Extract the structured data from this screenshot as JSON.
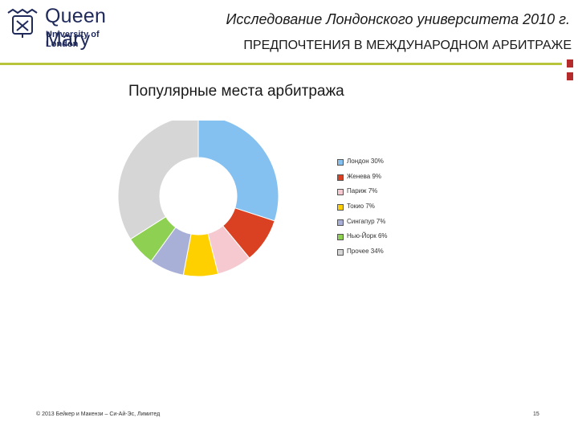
{
  "logo": {
    "name": "Queen Mary",
    "sub": "University of London"
  },
  "header": {
    "title": "Исследование Лондонского университета 2010 г.",
    "subtitle": "ПРЕДПОЧТЕНИЯ В МЕЖДУНАРОДНОМ АРБИТРАЖЕ"
  },
  "colors": {
    "accent_rule": "#b8c43a",
    "corner": "#b52a2a"
  },
  "chart_data": {
    "type": "pie",
    "variant": "donut",
    "title": "Популярные места арбитража",
    "legend_position": "right",
    "slices": [
      {
        "name": "Лондон",
        "value": 30,
        "label": "Лондон 30%",
        "color": "#85c1f0"
      },
      {
        "name": "Женева",
        "value": 9,
        "label": "Женева 9%",
        "color": "#d94122"
      },
      {
        "name": "Париж",
        "value": 7,
        "label": "Париж 7%",
        "color": "#f5c9cf"
      },
      {
        "name": "Токио",
        "value": 7,
        "label": "Токио 7%",
        "color": "#ffd000"
      },
      {
        "name": "Сингапур",
        "value": 7,
        "label": "Сингапур 7%",
        "color": "#a9b0d8"
      },
      {
        "name": "Нью-Йорк",
        "value": 6,
        "label": "Нью-Йорк 6%",
        "color": "#8ed052"
      },
      {
        "name": "Прочее",
        "value": 34,
        "label": "Прочее 34%",
        "color": "#d6d6d6"
      }
    ]
  },
  "footer": {
    "copyright": "© 2013 Бейкер и Макензи – Си-Ай-Эс, Лимитед",
    "page": "15"
  }
}
